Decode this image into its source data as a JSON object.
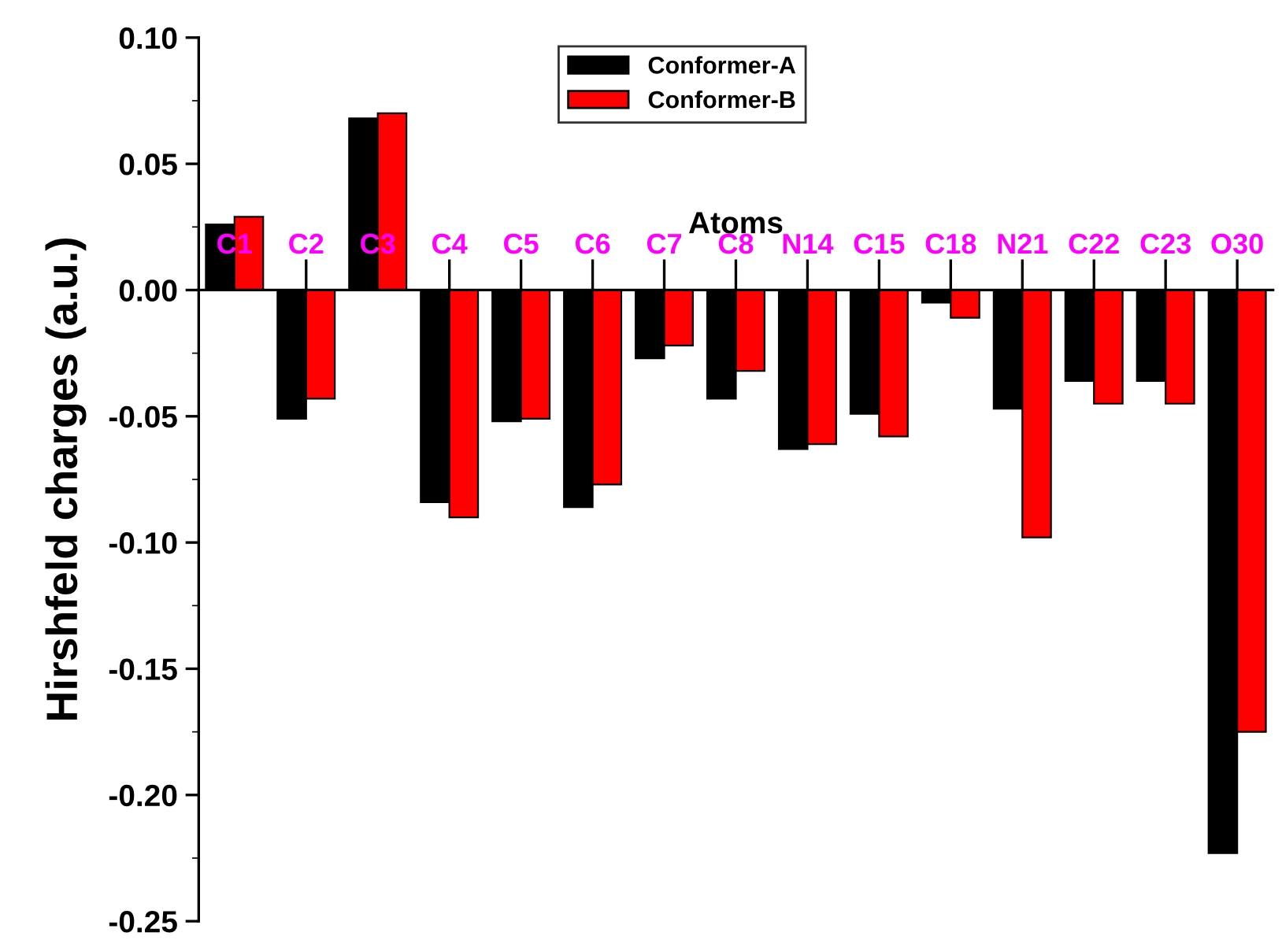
{
  "chart_data": {
    "type": "bar",
    "xlabel": "Atoms",
    "ylabel": "Hirshfeld charges (a.u.)",
    "categories": [
      "C1",
      "C2",
      "C3",
      "C4",
      "C5",
      "C6",
      "C7",
      "C8",
      "N14",
      "C15",
      "C18",
      "N21",
      "C22",
      "C23",
      "O30"
    ],
    "series": [
      {
        "name": "Conformer-A",
        "color": "#000000",
        "values": [
          0.026,
          -0.051,
          0.068,
          -0.084,
          -0.052,
          -0.086,
          -0.027,
          -0.043,
          -0.063,
          -0.049,
          -0.005,
          -0.047,
          -0.036,
          -0.036,
          -0.223
        ]
      },
      {
        "name": "Conformer-B",
        "color": "#ff0000",
        "values": [
          0.029,
          -0.043,
          0.07,
          -0.09,
          -0.051,
          -0.077,
          -0.022,
          -0.032,
          -0.061,
          -0.058,
          -0.011,
          -0.098,
          -0.045,
          -0.045,
          -0.175
        ]
      }
    ],
    "ylim": [
      -0.25,
      0.1
    ],
    "yticks": [
      {
        "value": -0.25,
        "label": "-0.25"
      },
      {
        "value": -0.2,
        "label": "-0.20"
      },
      {
        "value": -0.15,
        "label": "-0.15"
      },
      {
        "value": -0.1,
        "label": "-0.10"
      },
      {
        "value": -0.05,
        "label": "-0.05"
      },
      {
        "value": 0,
        "label": "0.00"
      },
      {
        "value": 0.05,
        "label": "0.05"
      },
      {
        "value": 0.1,
        "label": "0.10"
      }
    ],
    "legend": "top",
    "grid": false
  }
}
